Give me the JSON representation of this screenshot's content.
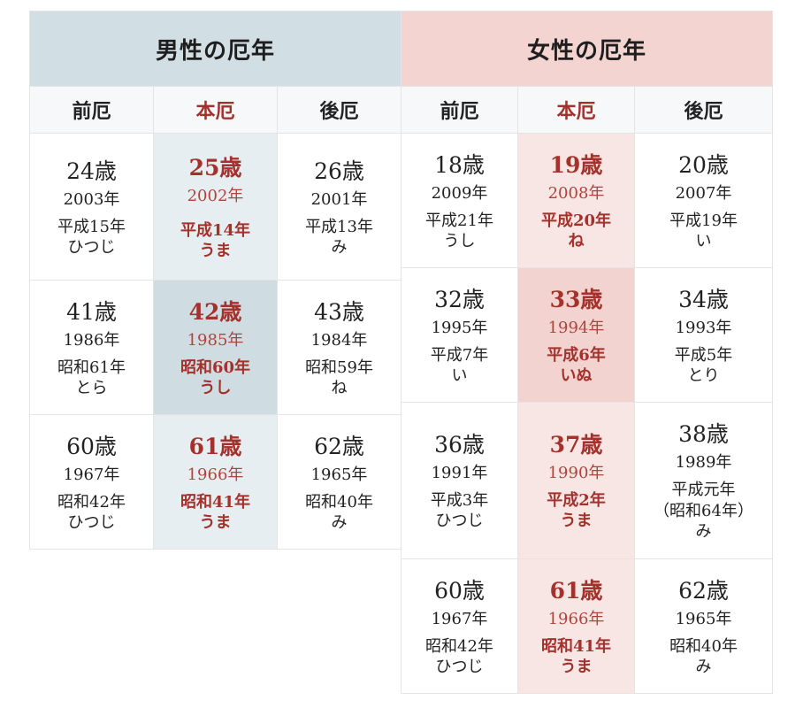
{
  "men": {
    "title": "男性の厄年",
    "headers": [
      "前厄",
      "本厄",
      "後厄"
    ],
    "rows": [
      [
        {
          "age": "24歳",
          "year": "2003年",
          "era": "平成15年",
          "eto": "ひつじ"
        },
        {
          "age": "25歳",
          "year": "2002年",
          "era": "平成14年",
          "eto": "うま"
        },
        {
          "age": "26歳",
          "year": "2001年",
          "era": "平成13年",
          "eto": "み"
        }
      ],
      [
        {
          "age": "41歳",
          "year": "1986年",
          "era": "昭和61年",
          "eto": "とら"
        },
        {
          "age": "42歳",
          "year": "1985年",
          "era": "昭和60年",
          "eto": "うし"
        },
        {
          "age": "43歳",
          "year": "1984年",
          "era": "昭和59年",
          "eto": "ね"
        }
      ],
      [
        {
          "age": "60歳",
          "year": "1967年",
          "era": "昭和42年",
          "eto": "ひつじ"
        },
        {
          "age": "61歳",
          "year": "1966年",
          "era": "昭和41年",
          "eto": "うま"
        },
        {
          "age": "62歳",
          "year": "1965年",
          "era": "昭和40年",
          "eto": "み"
        }
      ]
    ]
  },
  "women": {
    "title": "女性の厄年",
    "headers": [
      "前厄",
      "本厄",
      "後厄"
    ],
    "rows": [
      [
        {
          "age": "18歳",
          "year": "2009年",
          "era": "平成21年",
          "eto": "うし"
        },
        {
          "age": "19歳",
          "year": "2008年",
          "era": "平成20年",
          "eto": "ね"
        },
        {
          "age": "20歳",
          "year": "2007年",
          "era": "平成19年",
          "eto": "い"
        }
      ],
      [
        {
          "age": "32歳",
          "year": "1995年",
          "era": "平成7年",
          "eto": "い"
        },
        {
          "age": "33歳",
          "year": "1994年",
          "era": "平成6年",
          "eto": "いぬ"
        },
        {
          "age": "34歳",
          "year": "1993年",
          "era": "平成5年",
          "eto": "とり"
        }
      ],
      [
        {
          "age": "36歳",
          "year": "1991年",
          "era": "平成3年",
          "eto": "ひつじ"
        },
        {
          "age": "37歳",
          "year": "1990年",
          "era": "平成2年",
          "eto": "うま"
        },
        {
          "age": "38歳",
          "year": "1989年",
          "era": "平成元年",
          "era2": "（昭和64年）",
          "eto": "み"
        }
      ],
      [
        {
          "age": "60歳",
          "year": "1967年",
          "era": "昭和42年",
          "eto": "ひつじ"
        },
        {
          "age": "61歳",
          "year": "1966年",
          "era": "昭和41年",
          "eto": "うま"
        },
        {
          "age": "62歳",
          "year": "1965年",
          "era": "昭和40年",
          "eto": "み"
        }
      ]
    ]
  }
}
